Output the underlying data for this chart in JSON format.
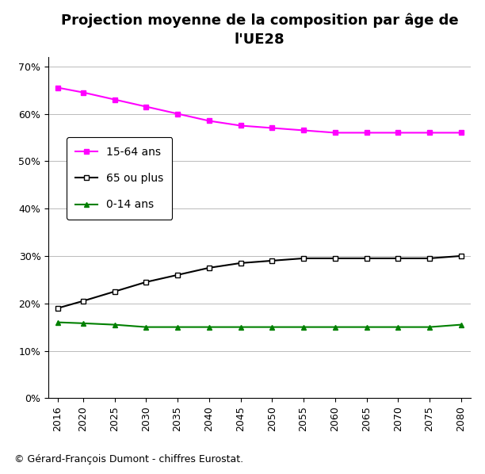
{
  "title": "Projection moyenne de la composition par âge de\nl'UE28",
  "caption": "© Gérard-François Dumont - chiffres Eurostat.",
  "years": [
    2016,
    2020,
    2025,
    2030,
    2035,
    2040,
    2045,
    2050,
    2055,
    2060,
    2065,
    2070,
    2075,
    2080
  ],
  "series": [
    {
      "label": "15-64 ans",
      "color": "#FF00FF",
      "marker": "s",
      "markersize": 5,
      "markerfacecolor": "#FF00FF",
      "markeredgecolor": "#FF00FF",
      "values": [
        65.5,
        64.5,
        63.0,
        61.5,
        60.0,
        58.5,
        57.5,
        57.0,
        56.5,
        56.0,
        56.0,
        56.0,
        56.0,
        56.0
      ]
    },
    {
      "label": "65 ou plus",
      "color": "#000000",
      "marker": "s",
      "markersize": 5,
      "markerfacecolor": "#ffffff",
      "markeredgecolor": "#000000",
      "values": [
        19.0,
        20.5,
        22.5,
        24.5,
        26.0,
        27.5,
        28.5,
        29.0,
        29.5,
        29.5,
        29.5,
        29.5,
        29.5,
        30.0
      ]
    },
    {
      "label": "0-14 ans",
      "color": "#008000",
      "marker": "^",
      "markersize": 5,
      "markerfacecolor": "#008000",
      "markeredgecolor": "#008000",
      "values": [
        16.0,
        15.8,
        15.5,
        15.0,
        15.0,
        15.0,
        15.0,
        15.0,
        15.0,
        15.0,
        15.0,
        15.0,
        15.0,
        15.5
      ]
    }
  ],
  "ylim": [
    0,
    72
  ],
  "yticks": [
    0,
    10,
    20,
    30,
    40,
    50,
    60,
    70
  ],
  "ytick_labels": [
    "0%",
    "10%",
    "20%",
    "30%",
    "40%",
    "50%",
    "60%",
    "70%"
  ],
  "xlim_left": 2014.5,
  "xlim_right": 2081.5,
  "background_color": "#ffffff",
  "grid_color": "#bbbbbb",
  "title_fontsize": 13,
  "tick_fontsize": 9,
  "legend_fontsize": 10,
  "caption_fontsize": 9
}
